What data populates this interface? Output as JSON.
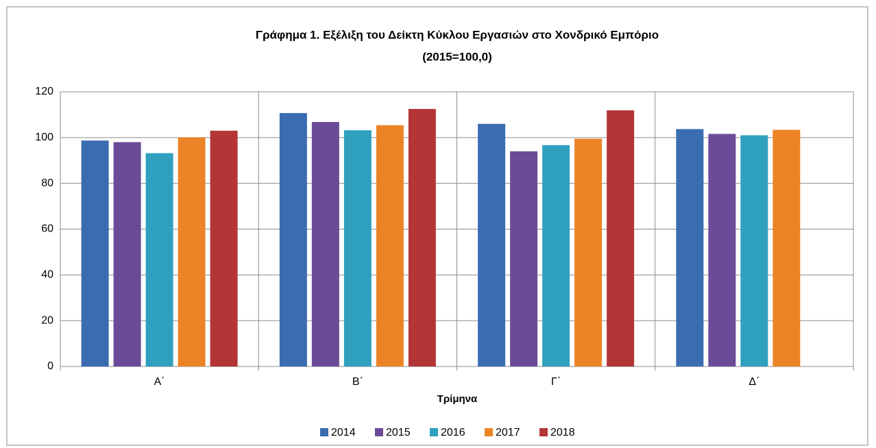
{
  "chart_data": {
    "type": "bar",
    "title": "Γράφημα 1.  Εξέλιξη του Δείκτη Κύκλου Εργασιών στο Χονδρικό Εμπόριο",
    "subtitle": "(2015=100,0)",
    "x_label": "Τρίμηνα",
    "categories": [
      "Α΄",
      "Β΄",
      "Γ΄",
      "Δ΄"
    ],
    "series": [
      {
        "name": "2014",
        "color": "#3a6cb2",
        "values": [
          98.7,
          110.7,
          106.0,
          103.7
        ]
      },
      {
        "name": "2015",
        "color": "#6b4b97",
        "values": [
          98.0,
          106.8,
          94.0,
          101.6
        ]
      },
      {
        "name": "2016",
        "color": "#2fa0bd",
        "values": [
          93.2,
          103.2,
          96.7,
          101.0
        ]
      },
      {
        "name": "2017",
        "color": "#ec8427",
        "values": [
          100.1,
          105.4,
          99.5,
          103.4
        ]
      },
      {
        "name": "2018",
        "color": "#b43535",
        "values": [
          103.0,
          112.5,
          111.9,
          null
        ]
      }
    ],
    "ylim": [
      0,
      120
    ],
    "yticks": [
      0,
      20,
      40,
      60,
      80,
      100,
      120
    ],
    "grid": true,
    "legend": "bottom"
  }
}
